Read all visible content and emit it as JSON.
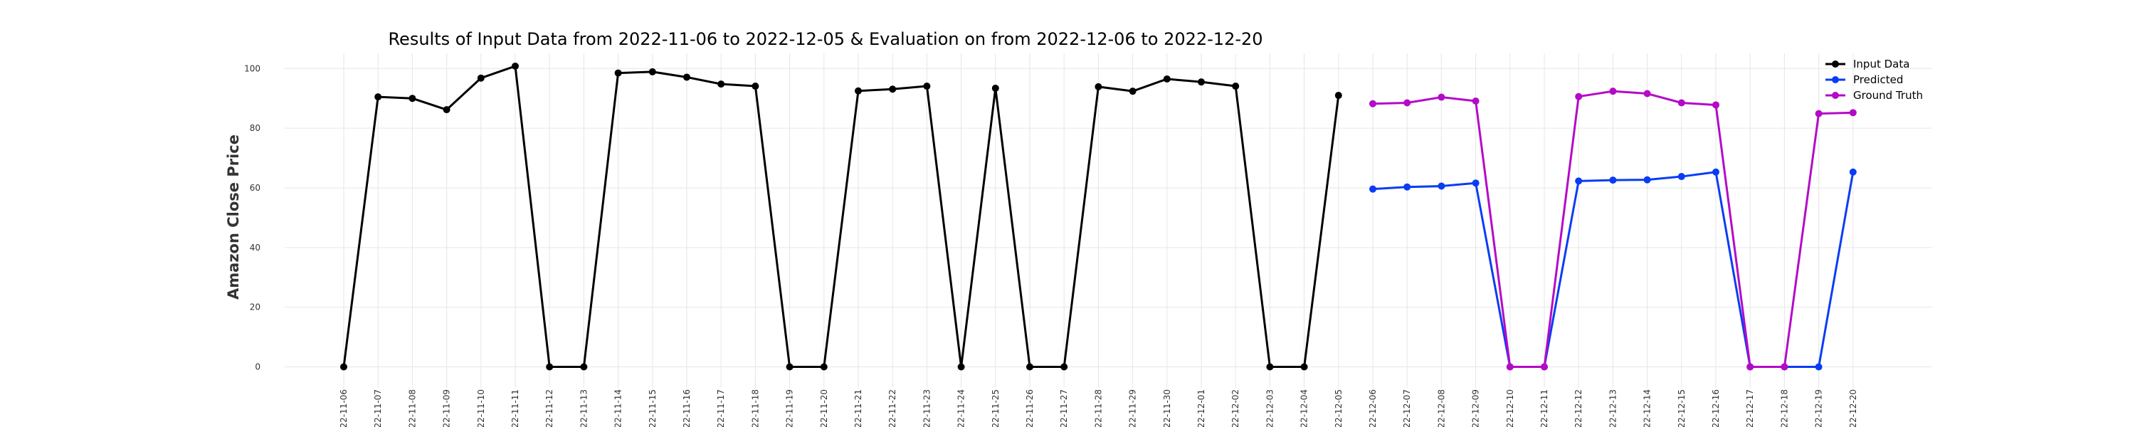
{
  "chart_data": {
    "type": "line",
    "title": "Results of Input Data from 2022-11-06 to 2022-12-05 & Evaluation on from 2022-12-06 to 2022-12-20",
    "xlabel": "",
    "ylabel": "Amazon Close Price",
    "ylim": [
      -6,
      106
    ],
    "yticks": [
      0,
      20,
      40,
      60,
      80,
      100
    ],
    "grid": true,
    "legend_position": "top-right",
    "x": [
      "2022-11-06",
      "2022-11-07",
      "2022-11-08",
      "2022-11-09",
      "2022-11-10",
      "2022-11-11",
      "2022-11-12",
      "2022-11-13",
      "2022-11-14",
      "2022-11-15",
      "2022-11-16",
      "2022-11-17",
      "2022-11-18",
      "2022-11-19",
      "2022-11-20",
      "2022-11-21",
      "2022-11-22",
      "2022-11-23",
      "2022-11-24",
      "2022-11-25",
      "2022-11-26",
      "2022-11-27",
      "2022-11-28",
      "2022-11-29",
      "2022-11-30",
      "2022-12-01",
      "2022-12-02",
      "2022-12-03",
      "2022-12-04",
      "2022-12-05",
      "2022-12-06",
      "2022-12-07",
      "2022-12-08",
      "2022-12-09",
      "2022-12-10",
      "2022-12-11",
      "2022-12-12",
      "2022-12-13",
      "2022-12-14",
      "2022-12-15",
      "2022-12-16",
      "2022-12-17",
      "2022-12-18",
      "2022-12-19",
      "2022-12-20"
    ],
    "series": [
      {
        "name": "Input Data",
        "color": "#000000",
        "x": [
          "2022-11-06",
          "2022-11-07",
          "2022-11-08",
          "2022-11-09",
          "2022-11-10",
          "2022-11-11",
          "2022-11-12",
          "2022-11-13",
          "2022-11-14",
          "2022-11-15",
          "2022-11-16",
          "2022-11-17",
          "2022-11-18",
          "2022-11-19",
          "2022-11-20",
          "2022-11-21",
          "2022-11-22",
          "2022-11-23",
          "2022-11-24",
          "2022-11-25",
          "2022-11-26",
          "2022-11-27",
          "2022-11-28",
          "2022-11-29",
          "2022-11-30",
          "2022-12-01",
          "2022-12-02",
          "2022-12-03",
          "2022-12-04",
          "2022-12-05"
        ],
        "values": [
          0,
          90.5,
          90.0,
          86.2,
          96.8,
          100.8,
          0,
          0,
          98.5,
          98.9,
          97.1,
          94.8,
          94.1,
          0,
          0,
          92.5,
          93.1,
          94.1,
          0,
          93.4,
          0,
          0,
          93.9,
          92.4,
          96.5,
          95.5,
          94.1,
          0,
          0,
          91.0
        ]
      },
      {
        "name": "Predicted",
        "color": "#0a3cf5",
        "x": [
          "2022-12-06",
          "2022-12-07",
          "2022-12-08",
          "2022-12-09",
          "2022-12-10",
          "2022-12-11",
          "2022-12-12",
          "2022-12-13",
          "2022-12-14",
          "2022-12-15",
          "2022-12-16",
          "2022-12-17",
          "2022-12-18",
          "2022-12-19",
          "2022-12-20"
        ],
        "values": [
          59.6,
          60.3,
          60.6,
          61.6,
          0,
          0,
          62.3,
          62.6,
          62.7,
          63.8,
          65.3,
          0,
          0,
          0,
          65.3
        ]
      },
      {
        "name": "Ground Truth",
        "color": "#b40ac8",
        "x": [
          "2022-12-06",
          "2022-12-07",
          "2022-12-08",
          "2022-12-09",
          "2022-12-10",
          "2022-12-11",
          "2022-12-12",
          "2022-12-13",
          "2022-12-14",
          "2022-12-15",
          "2022-12-16",
          "2022-12-17",
          "2022-12-18",
          "2022-12-19",
          "2022-12-20"
        ],
        "values": [
          88.2,
          88.5,
          90.4,
          89.1,
          0,
          0,
          90.6,
          92.4,
          91.6,
          88.5,
          87.8,
          0,
          0,
          84.9,
          85.2
        ]
      }
    ]
  }
}
